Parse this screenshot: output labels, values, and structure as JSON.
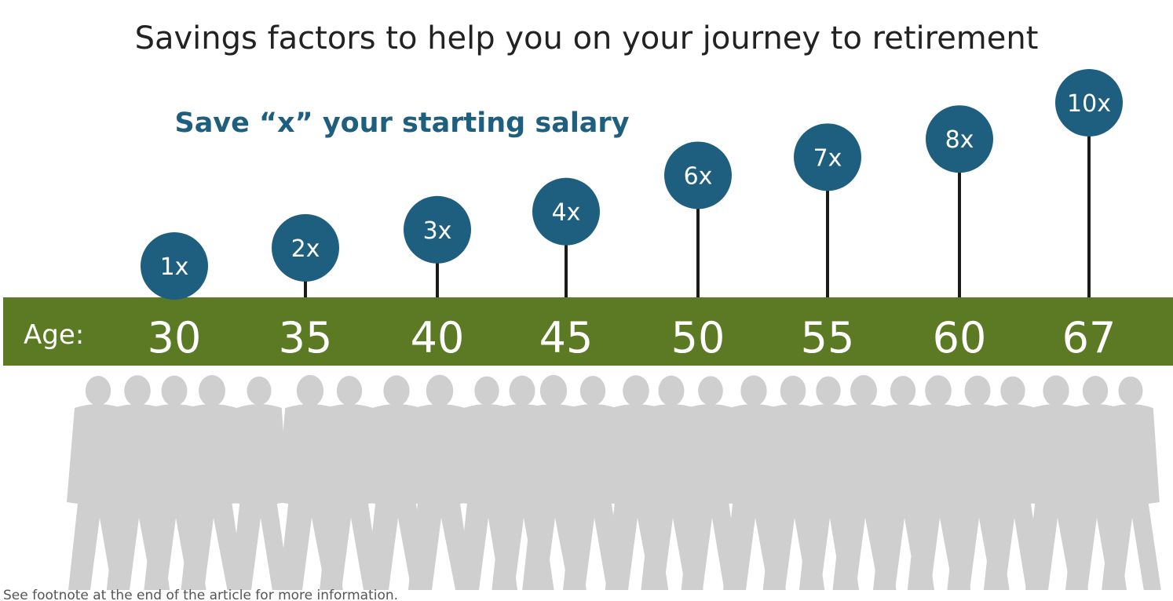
{
  "chart_data": {
    "type": "scatter",
    "title": "Savings factors to help you on your journey to retirement",
    "subtitle": "Save “x” your starting salary",
    "age_prefix": "Age:",
    "categories": [
      "30",
      "35",
      "40",
      "45",
      "50",
      "55",
      "60",
      "67"
    ],
    "x": [
      30,
      35,
      40,
      45,
      50,
      55,
      60,
      67
    ],
    "values": [
      1,
      2,
      3,
      4,
      6,
      7,
      8,
      10
    ],
    "value_labels": [
      "1x",
      "2x",
      "3x",
      "4x",
      "6x",
      "7x",
      "8x",
      "10x"
    ],
    "ylim": [
      0,
      10
    ],
    "grid": false
  },
  "footnote": "See footnote at the end of the article for more information.",
  "colors": {
    "bubble": "#1e5f7f",
    "age_band": "#5c7a23",
    "stem": "#1a1a1a",
    "silhouette": "#cfcfcf"
  }
}
